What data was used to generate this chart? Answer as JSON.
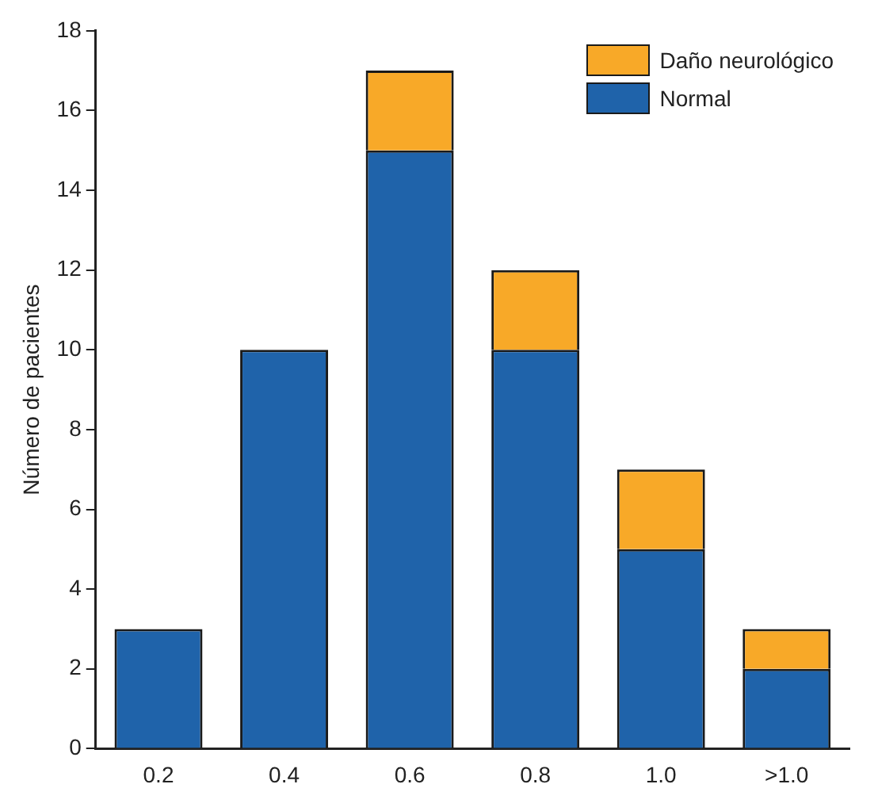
{
  "chart_data": {
    "type": "bar",
    "ylabel": "Número de pacientes",
    "categories": [
      "0.2",
      "0.4",
      "0.6",
      "0.8",
      "1.0",
      ">1.0"
    ],
    "stacked": true,
    "series": [
      {
        "name": "Normal",
        "color": "#1f63aa",
        "values": [
          3,
          10,
          15,
          10,
          5,
          2
        ]
      },
      {
        "name": "Daño neurológico",
        "color": "#f8a928",
        "values": [
          0,
          0,
          2,
          2,
          2,
          1
        ]
      }
    ],
    "ylim": [
      0,
      18
    ],
    "yticks": [
      0,
      2,
      4,
      6,
      8,
      10,
      12,
      14,
      16,
      18
    ],
    "grid": false,
    "legend": "top right"
  }
}
